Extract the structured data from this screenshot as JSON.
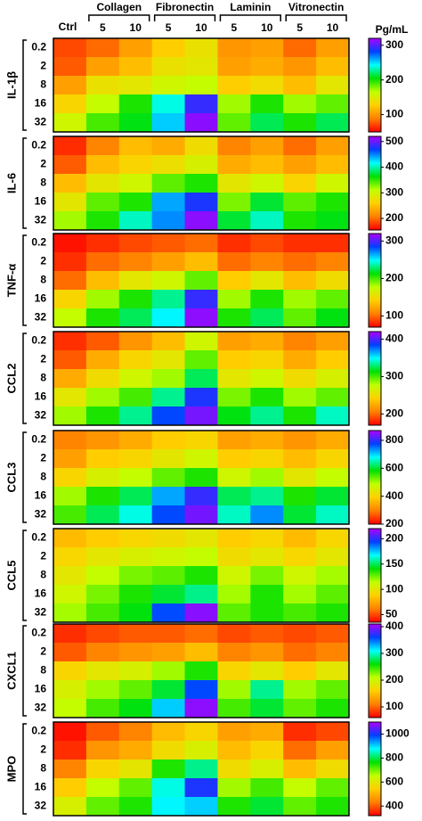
{
  "columns": {
    "ctrl": "Ctrl",
    "groups": [
      {
        "name": "Collagen",
        "doses": [
          "5",
          "10"
        ]
      },
      {
        "name": "Fibronectin",
        "doses": [
          "5",
          "10"
        ]
      },
      {
        "name": "Laminin",
        "doses": [
          "5",
          "10"
        ]
      },
      {
        "name": "Vitronectin",
        "doses": [
          "5",
          "10"
        ]
      }
    ]
  },
  "unit": "Pg/mL",
  "colormap": [
    "#ff0000",
    "#ff8000",
    "#ffd000",
    "#c0ff00",
    "#00e000",
    "#00ffff",
    "#0040ff",
    "#b000ff"
  ],
  "chart_data": [
    {
      "type": "heatmap",
      "title": "IL-1β",
      "rows": [
        "0.2",
        "2",
        "8",
        "16",
        "32"
      ],
      "zlim": [
        50,
        320
      ],
      "zticks": [
        100,
        200,
        300
      ],
      "values": [
        [
          72,
          82,
          104,
          126,
          140,
          99,
          104,
          82,
          104
        ],
        [
          77,
          104,
          118,
          140,
          145,
          104,
          110,
          99,
          118
        ],
        [
          104,
          140,
          145,
          158,
          163,
          126,
          136,
          118,
          145
        ],
        [
          131,
          163,
          199,
          239,
          293,
          172,
          199,
          172,
          185
        ],
        [
          158,
          190,
          207,
          253,
          312,
          185,
          217,
          199,
          217
        ]
      ]
    },
    {
      "type": "heatmap",
      "title": "IL-6",
      "rows": [
        "0.2",
        "2",
        "8",
        "16",
        "32"
      ],
      "zlim": [
        155,
        520
      ],
      "zticks": [
        200,
        300,
        400,
        500
      ],
      "values": [
        [
          173,
          210,
          246,
          235,
          272,
          210,
          228,
          199,
          228
        ],
        [
          192,
          246,
          264,
          275,
          294,
          235,
          246,
          228,
          246
        ],
        [
          246,
          283,
          301,
          338,
          356,
          283,
          301,
          264,
          301
        ],
        [
          283,
          338,
          356,
          440,
          476,
          330,
          374,
          338,
          356
        ],
        [
          319,
          356,
          403,
          447,
          509,
          374,
          403,
          356,
          367
        ]
      ]
    },
    {
      "type": "heatmap",
      "title": "TNF-α",
      "rows": [
        "0.2",
        "2",
        "8",
        "16",
        "32"
      ],
      "zlim": [
        70,
        320
      ],
      "zticks": [
        100,
        200,
        300
      ],
      "values": [
        [
          75,
          83,
          90,
          95,
          100,
          83,
          90,
          83,
          83
        ],
        [
          83,
          100,
          108,
          120,
          133,
          100,
          108,
          100,
          108
        ],
        [
          100,
          133,
          158,
          170,
          195,
          140,
          158,
          133,
          150
        ],
        [
          145,
          183,
          208,
          233,
          295,
          183,
          208,
          183,
          195
        ],
        [
          175,
          208,
          225,
          250,
          313,
          208,
          225,
          195,
          215
        ]
      ]
    },
    {
      "type": "heatmap",
      "title": "CCL2",
      "rows": [
        "0.2",
        "2",
        "8",
        "16",
        "32"
      ],
      "zlim": [
        170,
        420
      ],
      "zticks": [
        200,
        300,
        400
      ],
      "values": [
        [
          183,
          195,
          215,
          233,
          270,
          220,
          225,
          208,
          220
        ],
        [
          195,
          225,
          245,
          258,
          295,
          240,
          245,
          225,
          240
        ],
        [
          225,
          250,
          270,
          283,
          325,
          258,
          270,
          250,
          265
        ],
        [
          258,
          283,
          300,
          333,
          390,
          290,
          308,
          283,
          295
        ],
        [
          283,
          308,
          333,
          383,
          408,
          315,
          333,
          308,
          340
        ]
      ]
    },
    {
      "type": "heatmap",
      "title": "CCL3",
      "rows": [
        "0.2",
        "2",
        "8",
        "16",
        "32"
      ],
      "zlim": [
        200,
        870
      ],
      "zticks": [
        200,
        400,
        600,
        800
      ],
      "values": [
        [
          300,
          321,
          347,
          388,
          401,
          334,
          347,
          321,
          347
        ],
        [
          334,
          388,
          401,
          435,
          468,
          388,
          401,
          368,
          401
        ],
        [
          401,
          455,
          481,
          535,
          569,
          468,
          502,
          435,
          481
        ],
        [
          502,
          569,
          615,
          723,
          803,
          615,
          636,
          569,
          602
        ],
        [
          548,
          615,
          669,
          770,
          837,
          656,
          736,
          602,
          656
        ]
      ]
    },
    {
      "type": "heatmap",
      "title": "CCL5",
      "rows": [
        "0.2",
        "2",
        "8",
        "16",
        "32"
      ],
      "zlim": [
        35,
        220
      ],
      "zticks": [
        50,
        100,
        150,
        200
      ],
      "values": [
        [
          81,
          87,
          91,
          94,
          100,
          87,
          91,
          81,
          91
        ],
        [
          91,
          100,
          105,
          109,
          113,
          94,
          100,
          91,
          100
        ],
        [
          100,
          113,
          124,
          128,
          137,
          109,
          124,
          109,
          118
        ],
        [
          109,
          124,
          137,
          146,
          155,
          118,
          137,
          118,
          128
        ],
        [
          118,
          131,
          142,
          192,
          214,
          128,
          137,
          131,
          137
        ]
      ]
    },
    {
      "type": "heatmap",
      "title": "CXCL1",
      "rows": [
        "0.2",
        "2",
        "8",
        "16",
        "32"
      ],
      "zlim": [
        60,
        410
      ],
      "zticks": [
        100,
        200,
        300,
        400
      ],
      "values": [
        [
          78,
          88,
          95,
          95,
          102,
          88,
          95,
          88,
          95
        ],
        [
          95,
          113,
          123,
          130,
          148,
          113,
          123,
          102,
          113
        ],
        [
          165,
          183,
          193,
          218,
          253,
          165,
          183,
          158,
          183
        ],
        [
          193,
          218,
          235,
          270,
          358,
          218,
          288,
          218,
          235
        ],
        [
          207,
          242,
          263,
          323,
          400,
          242,
          270,
          235,
          253
        ]
      ]
    },
    {
      "type": "heatmap",
      "title": "MPO",
      "rows": [
        "0.2",
        "2",
        "8",
        "16",
        "32"
      ],
      "zlim": [
        320,
        1100
      ],
      "zticks": [
        400,
        600,
        800,
        1000
      ],
      "values": [
        [
          336,
          398,
          437,
          515,
          554,
          476,
          492,
          359,
          382
        ],
        [
          359,
          460,
          492,
          570,
          616,
          515,
          554,
          414,
          476
        ],
        [
          437,
          554,
          593,
          749,
          827,
          570,
          616,
          515,
          570
        ],
        [
          538,
          648,
          710,
          866,
          1006,
          671,
          726,
          648,
          710
        ],
        [
          616,
          710,
          749,
          882,
          905,
          749,
          788,
          710,
          749
        ]
      ]
    }
  ]
}
